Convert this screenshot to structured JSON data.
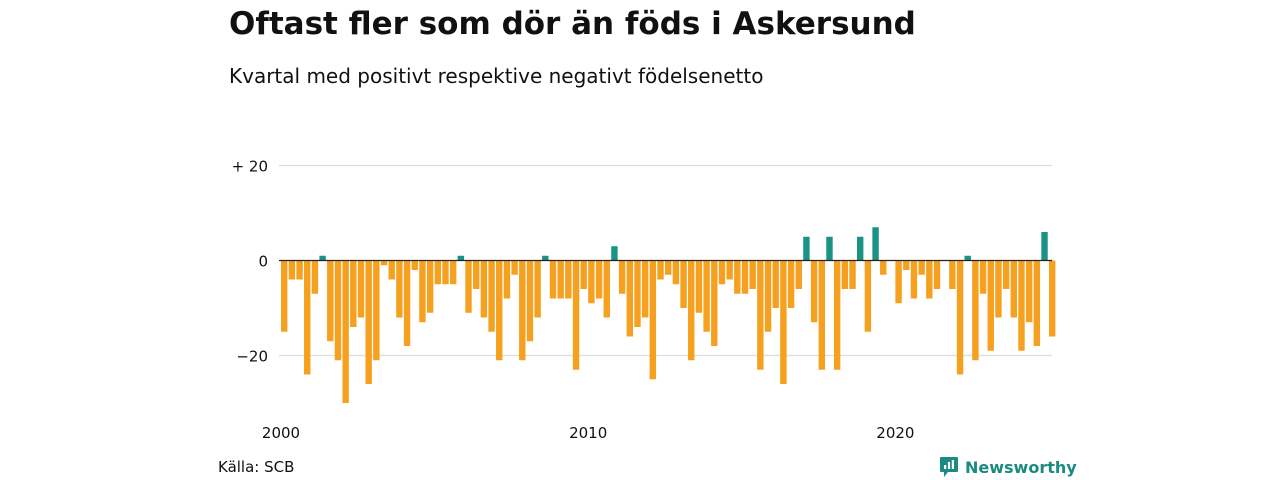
{
  "title": "Oftast fler som dör än föds i Askersund",
  "subtitle": "Kvartal med positivt respektive negativt födelsenetto",
  "source": "Källa: SCB",
  "brand": {
    "name": "Newsworthy",
    "icon": "newsworthy-logo-icon"
  },
  "colors": {
    "positive": "#1a9385",
    "negative": "#f5a01e",
    "grid": "#dddddd",
    "zero": "#222222"
  },
  "chart_data": {
    "type": "bar",
    "xlabel": "",
    "ylabel": "",
    "ylim": [
      -30,
      20
    ],
    "y_ticks": [
      {
        "value": 20,
        "label": "+ 20"
      },
      {
        "value": 0,
        "label": "0"
      },
      {
        "value": -20,
        "label": "−20"
      }
    ],
    "x_ticks": [
      {
        "year": 2000,
        "label": "2000"
      },
      {
        "year": 2010,
        "label": "2010"
      },
      {
        "year": 2020,
        "label": "2020"
      }
    ],
    "start_year": 2000,
    "start_quarter": 1,
    "values": [
      -15,
      -4,
      -4,
      -24,
      -7,
      1,
      -17,
      -21,
      -30,
      -14,
      -12,
      -26,
      -21,
      -1,
      -4,
      -12,
      -18,
      -2,
      -13,
      -11,
      -5,
      -5,
      -5,
      1,
      -11,
      -6,
      -12,
      -15,
      -21,
      -8,
      -3,
      -21,
      -17,
      -12,
      1,
      -8,
      -8,
      -8,
      -23,
      -6,
      -9,
      -8,
      -12,
      3,
      -7,
      -16,
      -14,
      -12,
      -25,
      -4,
      -3,
      -5,
      -10,
      -21,
      -11,
      -15,
      -18,
      -5,
      -4,
      -7,
      -7,
      -6,
      -23,
      -15,
      -10,
      -26,
      -10,
      -6,
      5,
      -13,
      -23,
      5,
      -23,
      -6,
      -6,
      5,
      -15,
      7,
      -3,
      0,
      -9,
      -2,
      -8,
      -3,
      -8,
      -6,
      0,
      -6,
      -24,
      1,
      -21,
      -7,
      -19,
      -12,
      -6,
      -12,
      -19,
      -13,
      -18,
      6,
      -16
    ]
  }
}
